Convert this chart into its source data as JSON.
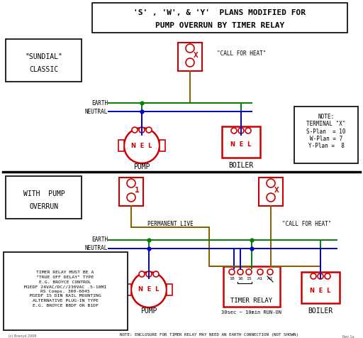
{
  "title_line1": "'S' , 'W', & 'Y'  PLANS MODIFIED FOR",
  "title_line2": "PUMP OVERRUN BY TIMER RELAY",
  "bg_color": "#ffffff",
  "BRN": "#8B5A00",
  "GRN": "#008000",
  "BLU": "#0000cc",
  "RED": "#cc0000",
  "BLK": "#000000",
  "note1_text": "NOTE:\nTERMINAL \"X\"\nS-Plan  = 10\nW-Plan = 7\nY-Plan =  8",
  "timer_note": "TIMER RELAY MUST BE A\n\"TRUE OFF DELAY\" TYPE\nE.G. BROYCE CONTROL\nM1EDF 24VAC/DC//230VAC .5-10MI\nRS Comps. 300-6045\nM1EDF IS DIN RAIL MOUNTING\nALTERNATIVE PLUG-IN TYPE\nE.G. BROYCE B8DF OR B1DF",
  "bottom_note": "NOTE: ENCLOSURE FOR TIMER RELAY MAY NEED AN EARTH CONNECTION (NOT SHOWN)",
  "credit": "(c) Brenyd 2009",
  "rev": "Rev 1a"
}
